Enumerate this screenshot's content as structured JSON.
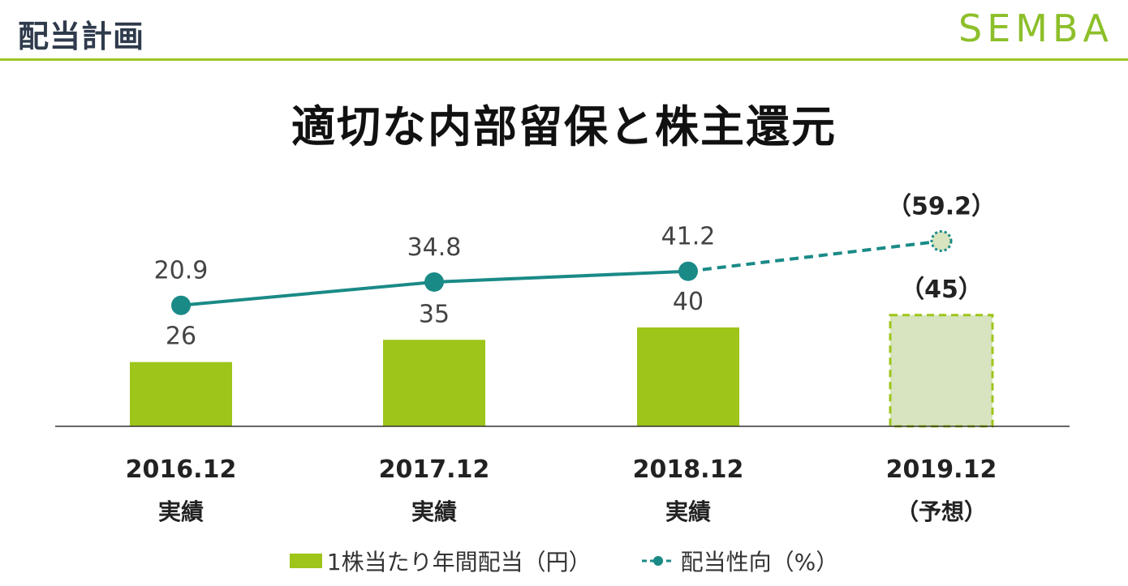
{
  "header": {
    "title": "配当計画",
    "logo": "SEMBA"
  },
  "main_title": "適切な内部留保と株主還元",
  "colors": {
    "bar": "#9dc51a",
    "bar_forecast": "#d7e4bf",
    "line": "#1a8a87",
    "rule": "#9dc52a"
  },
  "chart_data": {
    "type": "bar",
    "categories": [
      "2016.12",
      "2017.12",
      "2018.12",
      "2019.12"
    ],
    "category_sublabels": [
      "実績",
      "実績",
      "実績",
      "（予想）"
    ],
    "series": [
      {
        "name": "1株当たり年間配当（円）",
        "type": "bar",
        "values": [
          26,
          35,
          40,
          45
        ],
        "value_labels": [
          "26",
          "35",
          "40",
          "（45）"
        ],
        "forecast": [
          false,
          false,
          false,
          true
        ]
      },
      {
        "name": "配当性向（%）",
        "type": "line",
        "values": [
          20.9,
          34.8,
          41.2,
          59.2
        ],
        "value_labels": [
          "20.9",
          "34.8",
          "41.2",
          "（59.2）"
        ],
        "forecast": [
          false,
          false,
          false,
          true
        ]
      }
    ]
  },
  "legend": {
    "bar_label": "1株当たり年間配当（円）",
    "line_label": "配当性向（%）"
  }
}
